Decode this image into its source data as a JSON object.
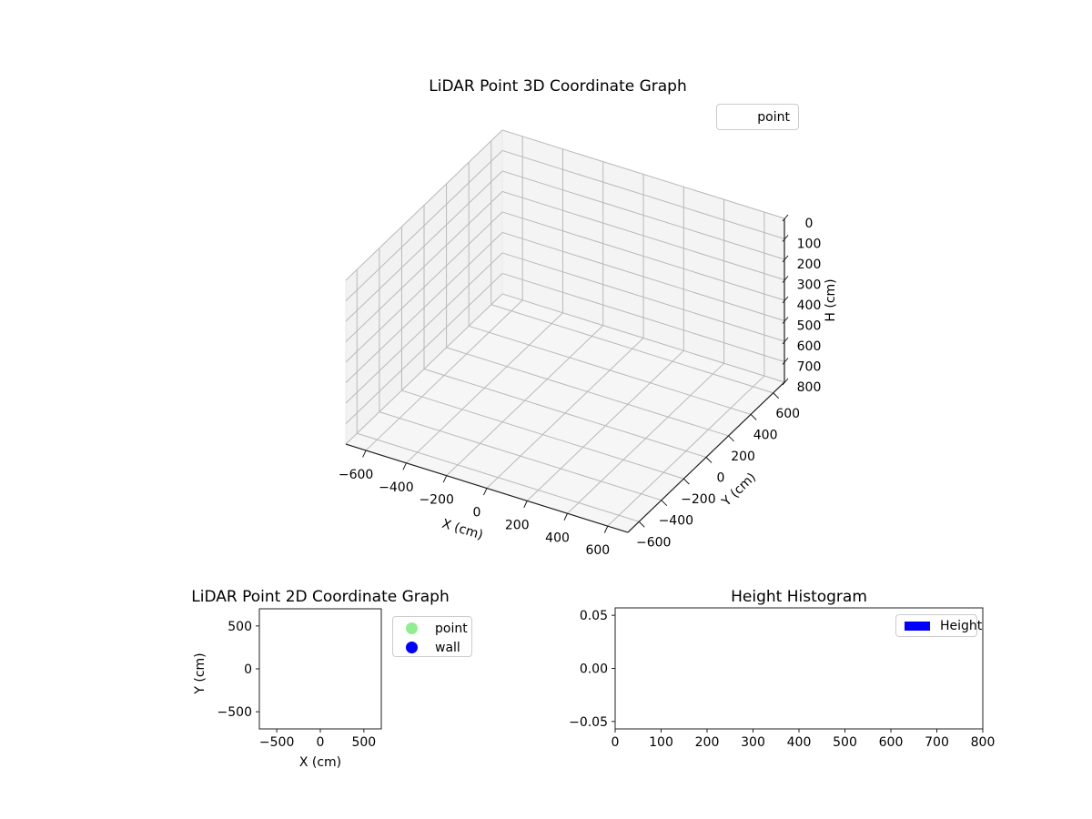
{
  "figure": {
    "background": "#ffffff"
  },
  "colors": {
    "point_marker": "#90EE90",
    "wall_marker": "#0000FF",
    "height_bar": "#0000FF",
    "grid_line": "#b9b9b9",
    "axis_line": "#1f1f1f",
    "pane_left": "#f2f2f2",
    "pane_right": "#f4f4f4",
    "pane_floor": "#f6f6f6",
    "pane_edge": "#e7e7e7"
  },
  "chart_data": [
    {
      "id": "lidar_3d",
      "type": "scatter3d",
      "title": "LiDAR Point 3D Coordinate Graph",
      "xlabel": "X (cm)",
      "ylabel": "Y (cm)",
      "zlabel": "H (cm)",
      "xlim": [
        -700,
        700
      ],
      "ylim": [
        -700,
        700
      ],
      "zlim": [
        0,
        800
      ],
      "z_axis_inverted": true,
      "xticks": [
        -600,
        -400,
        -200,
        0,
        200,
        400,
        600
      ],
      "xticklabels": [
        "−600",
        "−400",
        "−200",
        "0",
        "200",
        "400",
        "600"
      ],
      "yticks": [
        600,
        400,
        200,
        0,
        -200,
        -400,
        -600
      ],
      "yticklabels": [
        "600",
        "400",
        "200",
        "0",
        "−200",
        "−400",
        "−600"
      ],
      "zticks": [
        0,
        100,
        200,
        300,
        400,
        500,
        600,
        700,
        800
      ],
      "zticklabels": [
        "0",
        "100",
        "200",
        "300",
        "400",
        "500",
        "600",
        "700",
        "800"
      ],
      "grid": true,
      "legend": {
        "position": "upper right",
        "entries": [
          {
            "label": "point",
            "marker": "none"
          }
        ]
      },
      "series": [
        {
          "name": "point",
          "points": []
        }
      ]
    },
    {
      "id": "lidar_2d",
      "type": "scatter",
      "title": "LiDAR Point 2D Coordinate Graph",
      "xlabel": "X (cm)",
      "ylabel": "Y (cm)",
      "xlim": [
        -700,
        700
      ],
      "ylim": [
        -700,
        700
      ],
      "xticks": [
        -500,
        0,
        500
      ],
      "xticklabels": [
        "−500",
        "0",
        "500"
      ],
      "yticks": [
        500,
        0,
        -500
      ],
      "yticklabels": [
        "500",
        "0",
        "−500"
      ],
      "grid": false,
      "legend": {
        "position": "outside upper right",
        "entries": [
          {
            "label": "point",
            "marker": "circle",
            "color": "#90EE90"
          },
          {
            "label": "wall",
            "marker": "circle",
            "color": "#0000FF"
          }
        ]
      },
      "series": [
        {
          "name": "point",
          "color": "#90EE90",
          "points": []
        },
        {
          "name": "wall",
          "color": "#0000FF",
          "points": []
        }
      ]
    },
    {
      "id": "height_histogram",
      "type": "histogram",
      "title": "Height Histogram",
      "xlabel": "",
      "ylabel": "",
      "xlim": [
        0,
        800
      ],
      "ylim": [
        -0.057,
        0.057
      ],
      "xticks": [
        0,
        100,
        200,
        300,
        400,
        500,
        600,
        700,
        800
      ],
      "xticklabels": [
        "0",
        "100",
        "200",
        "300",
        "400",
        "500",
        "600",
        "700",
        "800"
      ],
      "yticks": [
        0.05,
        0,
        -0.05
      ],
      "yticklabels": [
        "0.05",
        "0.00",
        "−0.05"
      ],
      "grid": false,
      "legend": {
        "position": "upper right",
        "entries": [
          {
            "label": "Height",
            "marker": "rect",
            "color": "#0000FF"
          }
        ]
      },
      "values": [],
      "bins": []
    }
  ]
}
